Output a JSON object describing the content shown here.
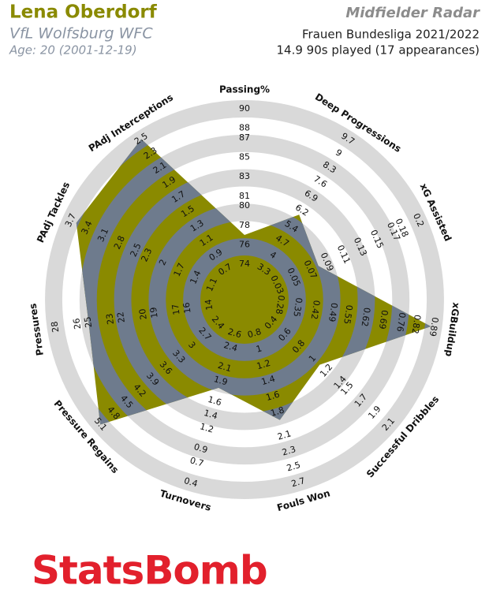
{
  "chart_data": {
    "type": "radar",
    "title": "Lena Oberdorf",
    "subtitle": "VfL Wolfsburg WFC",
    "age": "Age: 20 (2001-12-19)",
    "radar_title": "Midfielder Radar",
    "competition": "Frauen Bundesliga 2021/2022",
    "playing_time": "14.9 90s played (17 appearances)",
    "logo": "StatsBomb",
    "categories": [
      "Passing%",
      "Deep Progressions",
      "xG Assisted",
      "xGBuildup",
      "Successful Dribbles",
      "Fouls Won",
      "Turnovers",
      "Pressure Regains",
      "Pressures",
      "PAdj Tackles",
      "PAdj Interceptions"
    ],
    "values": [
      77,
      6.0,
      0.08,
      0.88,
      1.1,
      1.9,
      1.8,
      5.1,
      25,
      3.6,
      2.5
    ],
    "ticks": [
      [
        74,
        76,
        78,
        80,
        81,
        83,
        85,
        87,
        88,
        90
      ],
      [
        3.3,
        4.0,
        4.7,
        5.4,
        6.2,
        6.9,
        7.6,
        8.3,
        9.0,
        9.7
      ],
      [
        0.03,
        0.05,
        0.07,
        0.09,
        0.11,
        0.13,
        0.15,
        0.17,
        0.18,
        0.2
      ],
      [
        0.28,
        0.35,
        0.42,
        0.49,
        0.55,
        0.62,
        0.69,
        0.76,
        0.82,
        0.89
      ],
      [
        0.4,
        0.6,
        0.8,
        1.0,
        1.2,
        1.4,
        1.5,
        1.7,
        1.9,
        2.1
      ],
      [
        0.8,
        1.0,
        1.2,
        1.4,
        1.6,
        1.8,
        2.1,
        2.3,
        2.5,
        2.7
      ],
      [
        2.6,
        2.4,
        2.1,
        1.9,
        1.6,
        1.4,
        1.2,
        0.9,
        0.7,
        0.4
      ],
      [
        2.4,
        2.7,
        3.0,
        3.3,
        3.6,
        3.9,
        4.2,
        4.5,
        4.8,
        5.1
      ],
      [
        14,
        16,
        17,
        19,
        20,
        22,
        23,
        25,
        26,
        28
      ],
      [
        1.1,
        1.4,
        1.7,
        2.0,
        2.3,
        2.5,
        2.8,
        3.1,
        3.4,
        3.7
      ],
      [
        0.7,
        0.9,
        1.1,
        1.3,
        1.5,
        1.7,
        1.9,
        2.1,
        2.3,
        2.5
      ]
    ],
    "color": "#8a8a00",
    "ring_color": "#d9d9d9",
    "overlap_color": "#6e7b8d"
  }
}
